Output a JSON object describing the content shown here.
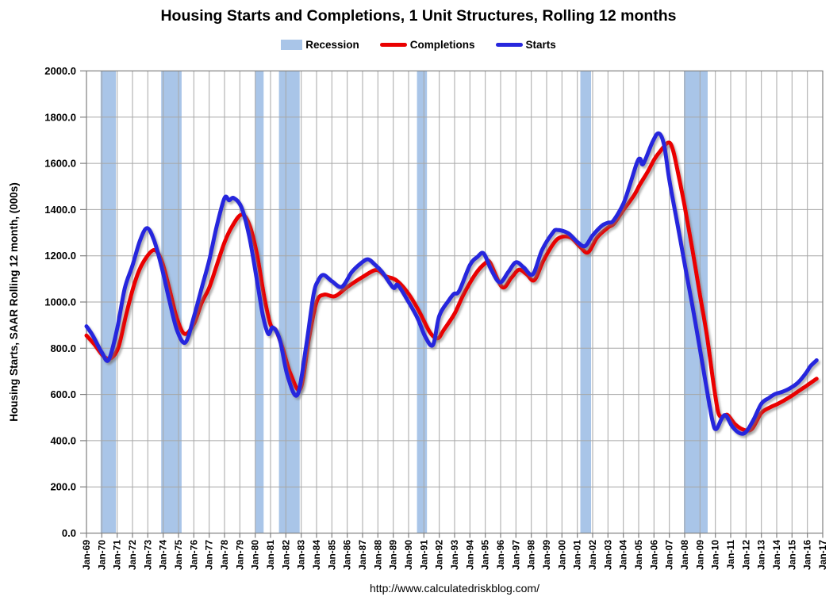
{
  "page": {
    "title": "Housing Starts and Completions, 1 Unit Structures, Rolling 12 months",
    "source_url": "http://www.calculatedriskblog.com/"
  },
  "legend": {
    "items": [
      {
        "label": "Recession",
        "type": "box",
        "color": "#a9c5e8"
      },
      {
        "label": "Completions",
        "type": "line",
        "color": "#ea0000"
      },
      {
        "label": "Starts",
        "type": "line",
        "color": "#2727dd"
      }
    ]
  },
  "colors": {
    "starts_line": "#2727dd",
    "completions_line": "#ea0000",
    "recession_band": "#a9c5e8",
    "gridline": "#a6a6a6",
    "axis": "#7f7f7f",
    "text": "#000000",
    "background": "#ffffff"
  },
  "chart_data": {
    "type": "line",
    "title": "Housing Starts and Completions, 1 Unit Structures, Rolling 12 months",
    "xlabel": "",
    "ylabel": "Housing Starts, SAAR Rolling 12 month, (000s)",
    "ylim": [
      0,
      2000
    ],
    "ytick_step": 200,
    "ytick_labels": [
      "0.0",
      "200.0",
      "400.0",
      "600.0",
      "800.0",
      "1000.0",
      "1200.0",
      "1400.0",
      "1600.0",
      "1800.0",
      "2000.0"
    ],
    "x_range": [
      1969,
      2017
    ],
    "xtick_labels": [
      "Jan-69",
      "Jan-70",
      "Jan-71",
      "Jan-72",
      "Jan-73",
      "Jan-74",
      "Jan-75",
      "Jan-76",
      "Jan-77",
      "Jan-78",
      "Jan-79",
      "Jan-80",
      "Jan-81",
      "Jan-82",
      "Jan-83",
      "Jan-84",
      "Jan-85",
      "Jan-86",
      "Jan-87",
      "Jan-88",
      "Jan-89",
      "Jan-90",
      "Jan-91",
      "Jan-92",
      "Jan-93",
      "Jan-94",
      "Jan-95",
      "Jan-96",
      "Jan-97",
      "Jan-98",
      "Jan-99",
      "Jan-00",
      "Jan-01",
      "Jan-02",
      "Jan-03",
      "Jan-04",
      "Jan-05",
      "Jan-06",
      "Jan-07",
      "Jan-08",
      "Jan-09",
      "Jan-10",
      "Jan-11",
      "Jan-12",
      "Jan-13",
      "Jan-14",
      "Jan-15",
      "Jan-16",
      "Jan-17"
    ],
    "grid": true,
    "legend_position": "top",
    "source": "http://www.calculatedriskblog.com/",
    "recession_bands": [
      [
        1969.92,
        1970.92
      ],
      [
        1973.87,
        1975.2
      ],
      [
        1980.0,
        1980.55
      ],
      [
        1981.55,
        1982.9
      ],
      [
        1990.55,
        1991.2
      ],
      [
        2001.2,
        2001.9
      ],
      [
        2007.95,
        2009.5
      ]
    ],
    "series": [
      {
        "name": "Completions",
        "color": "#ea0000",
        "points": [
          [
            1969.0,
            855
          ],
          [
            1969.5,
            818
          ],
          [
            1970.1,
            766
          ],
          [
            1970.6,
            757
          ],
          [
            1971.1,
            808
          ],
          [
            1971.6,
            950
          ],
          [
            1972.2,
            1095
          ],
          [
            1972.7,
            1172
          ],
          [
            1973.4,
            1225
          ],
          [
            1973.9,
            1178
          ],
          [
            1974.4,
            1058
          ],
          [
            1974.9,
            928
          ],
          [
            1975.4,
            862
          ],
          [
            1976.0,
            905
          ],
          [
            1976.5,
            995
          ],
          [
            1977.0,
            1062
          ],
          [
            1977.5,
            1160
          ],
          [
            1978.0,
            1258
          ],
          [
            1978.5,
            1328
          ],
          [
            1979.1,
            1378
          ],
          [
            1979.6,
            1338
          ],
          [
            1980.1,
            1212
          ],
          [
            1980.6,
            1018
          ],
          [
            1981.0,
            902
          ],
          [
            1981.35,
            878
          ],
          [
            1981.8,
            798
          ],
          [
            1982.3,
            690
          ],
          [
            1982.95,
            625
          ],
          [
            1983.5,
            840
          ],
          [
            1984.0,
            1000
          ],
          [
            1984.5,
            1032
          ],
          [
            1985.2,
            1025
          ],
          [
            1986.0,
            1065
          ],
          [
            1987.0,
            1108
          ],
          [
            1987.9,
            1139
          ],
          [
            1988.5,
            1112
          ],
          [
            1989.2,
            1094
          ],
          [
            1990.0,
            1035
          ],
          [
            1990.7,
            958
          ],
          [
            1991.4,
            868
          ],
          [
            1991.9,
            843
          ],
          [
            1992.3,
            880
          ],
          [
            1993.0,
            950
          ],
          [
            1993.6,
            1035
          ],
          [
            1994.4,
            1125
          ],
          [
            1995.0,
            1168
          ],
          [
            1995.3,
            1172
          ],
          [
            1996.1,
            1065
          ],
          [
            1996.7,
            1105
          ],
          [
            1997.2,
            1140
          ],
          [
            1997.7,
            1120
          ],
          [
            1998.2,
            1095
          ],
          [
            1998.8,
            1180
          ],
          [
            1999.5,
            1258
          ],
          [
            2000.0,
            1282
          ],
          [
            2000.6,
            1278
          ],
          [
            2001.2,
            1238
          ],
          [
            2001.7,
            1215
          ],
          [
            2002.3,
            1280
          ],
          [
            2003.0,
            1322
          ],
          [
            2003.4,
            1340
          ],
          [
            2004.0,
            1398
          ],
          [
            2004.7,
            1462
          ],
          [
            2005.1,
            1510
          ],
          [
            2005.6,
            1565
          ],
          [
            2006.0,
            1615
          ],
          [
            2006.4,
            1652
          ],
          [
            2006.95,
            1690
          ],
          [
            2007.25,
            1655
          ],
          [
            2007.6,
            1548
          ],
          [
            2008.0,
            1415
          ],
          [
            2008.5,
            1228
          ],
          [
            2009.0,
            1030
          ],
          [
            2009.45,
            855
          ],
          [
            2009.9,
            638
          ],
          [
            2010.2,
            520
          ],
          [
            2010.5,
            504
          ],
          [
            2010.8,
            511
          ],
          [
            2011.3,
            470
          ],
          [
            2011.9,
            446
          ],
          [
            2012.4,
            452
          ],
          [
            2013.0,
            520
          ],
          [
            2013.6,
            545
          ],
          [
            2014.0,
            557
          ],
          [
            2014.5,
            575
          ],
          [
            2015.0,
            595
          ],
          [
            2015.5,
            618
          ],
          [
            2016.0,
            640
          ],
          [
            2016.6,
            668
          ]
        ]
      },
      {
        "name": "Starts",
        "color": "#2727dd",
        "points": [
          [
            1969.0,
            895
          ],
          [
            1969.4,
            856
          ],
          [
            1970.0,
            782
          ],
          [
            1970.45,
            750
          ],
          [
            1971.0,
            885
          ],
          [
            1971.5,
            1060
          ],
          [
            1972.0,
            1158
          ],
          [
            1972.5,
            1268
          ],
          [
            1972.95,
            1320
          ],
          [
            1973.4,
            1268
          ],
          [
            1973.9,
            1152
          ],
          [
            1974.4,
            1008
          ],
          [
            1974.9,
            878
          ],
          [
            1975.45,
            825
          ],
          [
            1976.0,
            935
          ],
          [
            1976.5,
            1058
          ],
          [
            1977.0,
            1180
          ],
          [
            1977.5,
            1330
          ],
          [
            1978.0,
            1450
          ],
          [
            1978.3,
            1440
          ],
          [
            1978.6,
            1450
          ],
          [
            1979.1,
            1410
          ],
          [
            1979.6,
            1288
          ],
          [
            1980.1,
            1100
          ],
          [
            1980.5,
            942
          ],
          [
            1980.85,
            862
          ],
          [
            1981.15,
            890
          ],
          [
            1981.6,
            838
          ],
          [
            1982.1,
            682
          ],
          [
            1982.75,
            598
          ],
          [
            1983.3,
            800
          ],
          [
            1983.8,
            1030
          ],
          [
            1984.1,
            1092
          ],
          [
            1984.45,
            1117
          ],
          [
            1985.0,
            1090
          ],
          [
            1985.65,
            1066
          ],
          [
            1986.3,
            1130
          ],
          [
            1986.9,
            1168
          ],
          [
            1987.35,
            1185
          ],
          [
            1987.8,
            1162
          ],
          [
            1988.3,
            1128
          ],
          [
            1989.0,
            1062
          ],
          [
            1989.3,
            1073
          ],
          [
            1990.0,
            1000
          ],
          [
            1990.6,
            928
          ],
          [
            1991.1,
            848
          ],
          [
            1991.6,
            815
          ],
          [
            1992.0,
            940
          ],
          [
            1992.6,
            1005
          ],
          [
            1992.95,
            1035
          ],
          [
            1993.3,
            1048
          ],
          [
            1994.0,
            1160
          ],
          [
            1994.5,
            1196
          ],
          [
            1994.9,
            1210
          ],
          [
            1995.4,
            1138
          ],
          [
            1995.95,
            1085
          ],
          [
            1996.5,
            1130
          ],
          [
            1997.0,
            1172
          ],
          [
            1997.5,
            1150
          ],
          [
            1998.1,
            1120
          ],
          [
            1998.7,
            1225
          ],
          [
            1999.4,
            1300
          ],
          [
            1999.7,
            1312
          ],
          [
            2000.4,
            1298
          ],
          [
            2001.0,
            1260
          ],
          [
            2001.5,
            1242
          ],
          [
            2002.0,
            1288
          ],
          [
            2002.6,
            1330
          ],
          [
            2003.0,
            1343
          ],
          [
            2003.35,
            1352
          ],
          [
            2004.0,
            1425
          ],
          [
            2004.45,
            1512
          ],
          [
            2004.9,
            1605
          ],
          [
            2005.1,
            1620
          ],
          [
            2005.3,
            1598
          ],
          [
            2005.9,
            1692
          ],
          [
            2006.3,
            1730
          ],
          [
            2006.65,
            1682
          ],
          [
            2007.0,
            1528
          ],
          [
            2007.5,
            1348
          ],
          [
            2008.0,
            1165
          ],
          [
            2008.5,
            985
          ],
          [
            2009.0,
            795
          ],
          [
            2009.4,
            638
          ],
          [
            2009.8,
            490
          ],
          [
            2010.05,
            450
          ],
          [
            2010.45,
            500
          ],
          [
            2010.7,
            508
          ],
          [
            2011.1,
            462
          ],
          [
            2011.6,
            432
          ],
          [
            2012.0,
            438
          ],
          [
            2012.5,
            492
          ],
          [
            2013.0,
            560
          ],
          [
            2013.5,
            585
          ],
          [
            2013.9,
            602
          ],
          [
            2014.4,
            612
          ],
          [
            2014.9,
            628
          ],
          [
            2015.4,
            652
          ],
          [
            2015.9,
            692
          ],
          [
            2016.2,
            722
          ],
          [
            2016.6,
            748
          ]
        ]
      }
    ]
  }
}
